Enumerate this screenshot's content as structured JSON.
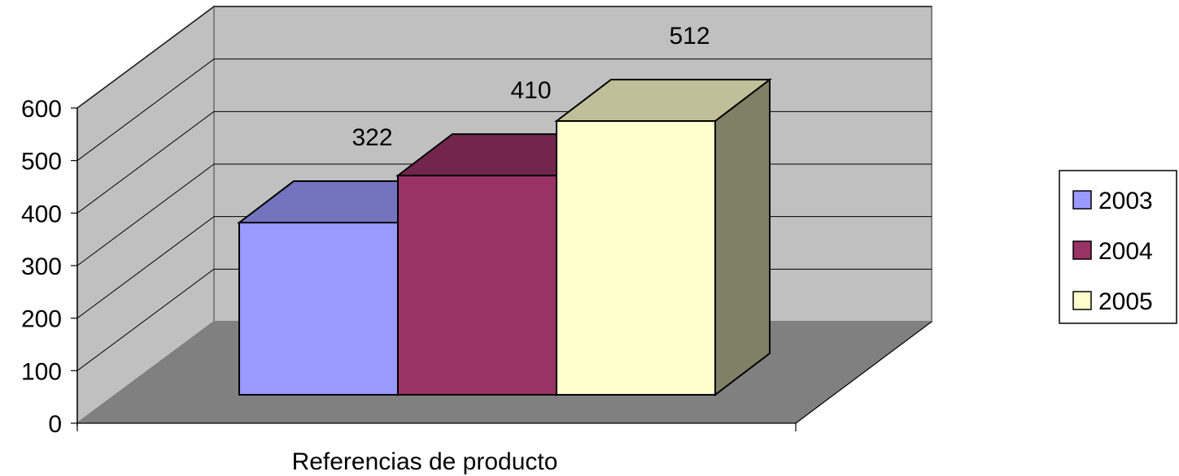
{
  "chart_data": {
    "type": "bar",
    "xlabel": "Referencias de producto",
    "ylabel": "",
    "title": "",
    "ylim": [
      0,
      600
    ],
    "y_ticks": [
      "0",
      "100",
      "200",
      "300",
      "400",
      "500",
      "600"
    ],
    "series": [
      {
        "name": "2003",
        "values": [
          322
        ],
        "color": "#9999FF",
        "label": "322"
      },
      {
        "name": "2004",
        "values": [
          410
        ],
        "color": "#993366",
        "label": "410"
      },
      {
        "name": "2005",
        "values": [
          512
        ],
        "color": "#FFFFCC",
        "label": "512"
      }
    ],
    "grid": true,
    "three_d": true,
    "legend_position": "right"
  }
}
